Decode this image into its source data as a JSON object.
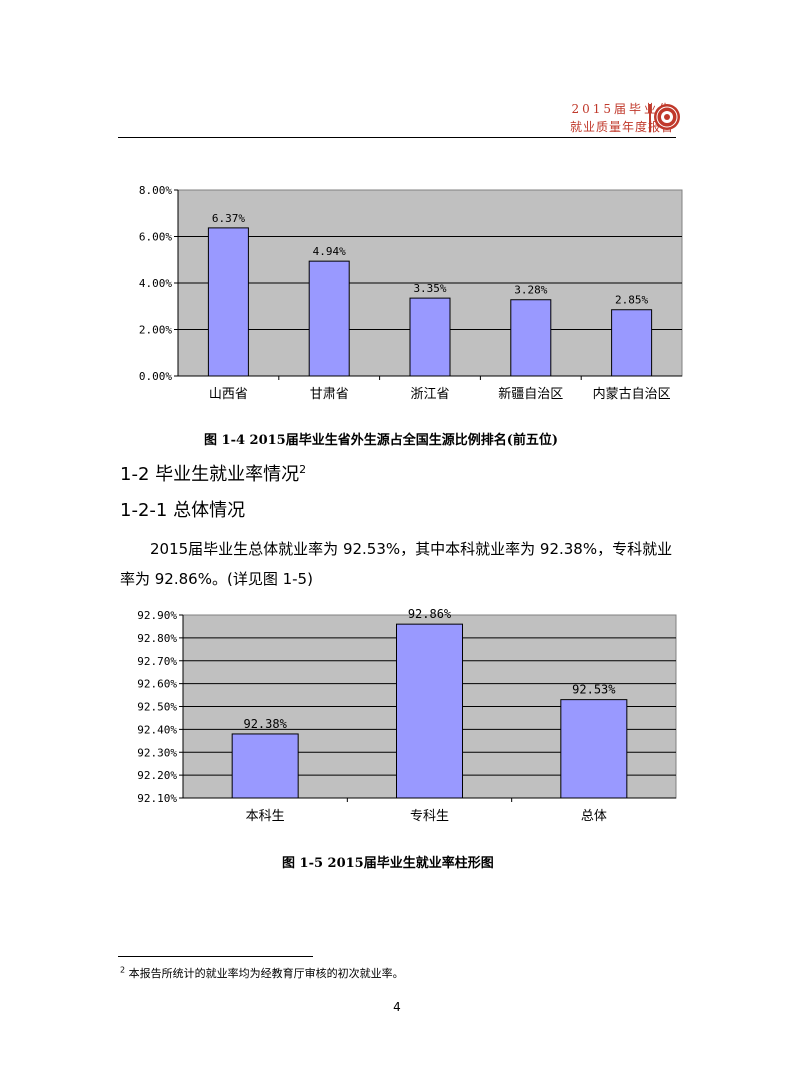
{
  "header": {
    "line1": "2015届毕业生",
    "line2": "就业质量年度报告",
    "logo_icon": "university-seal-icon"
  },
  "chart1_caption": "图 1-4    2015届毕业生省外生源占全国生源比例排名(前五位)",
  "section": {
    "heading1": "1-2 毕业生就业率情况",
    "heading1_sup": "2",
    "heading2": "1-2-1 总体情况",
    "paragraph": "2015届毕业生总体就业率为 92.53%，其中本科就业率为 92.38%，专科就业率为 92.86%。(详见图 1-5)"
  },
  "chart2_caption": "图 1-5    2015届毕业生就业率柱形图",
  "footnote": {
    "sup": "2",
    "text": "本报告所统计的就业率均为经教育厅审核的初次就业率。"
  },
  "page_number": "4",
  "chart_data": [
    {
      "type": "bar",
      "categories": [
        "山西省",
        "甘肃省",
        "浙江省",
        "新疆自治区",
        "内蒙古自治区"
      ],
      "values": [
        6.37,
        4.94,
        3.35,
        3.28,
        2.85
      ],
      "value_labels": [
        "6.37%",
        "4.94%",
        "3.35%",
        "3.28%",
        "2.85%"
      ],
      "ylim": [
        0,
        8
      ],
      "yticks": [
        "0.00%",
        "2.00%",
        "4.00%",
        "6.00%",
        "8.00%"
      ],
      "grid": true,
      "colors": {
        "bar": "#9999ff",
        "plot_bg": "#c0c0c0"
      }
    },
    {
      "type": "bar",
      "categories": [
        "本科生",
        "专科生",
        "总体"
      ],
      "values": [
        92.38,
        92.86,
        92.53
      ],
      "value_labels": [
        "92.38%",
        "92.86%",
        "92.53%"
      ],
      "ylim": [
        92.1,
        92.9
      ],
      "yticks": [
        "92.10%",
        "92.20%",
        "92.30%",
        "92.40%",
        "92.50%",
        "92.60%",
        "92.70%",
        "92.80%",
        "92.90%"
      ],
      "grid": true,
      "colors": {
        "bar": "#9999ff",
        "plot_bg": "#c0c0c0"
      }
    }
  ]
}
